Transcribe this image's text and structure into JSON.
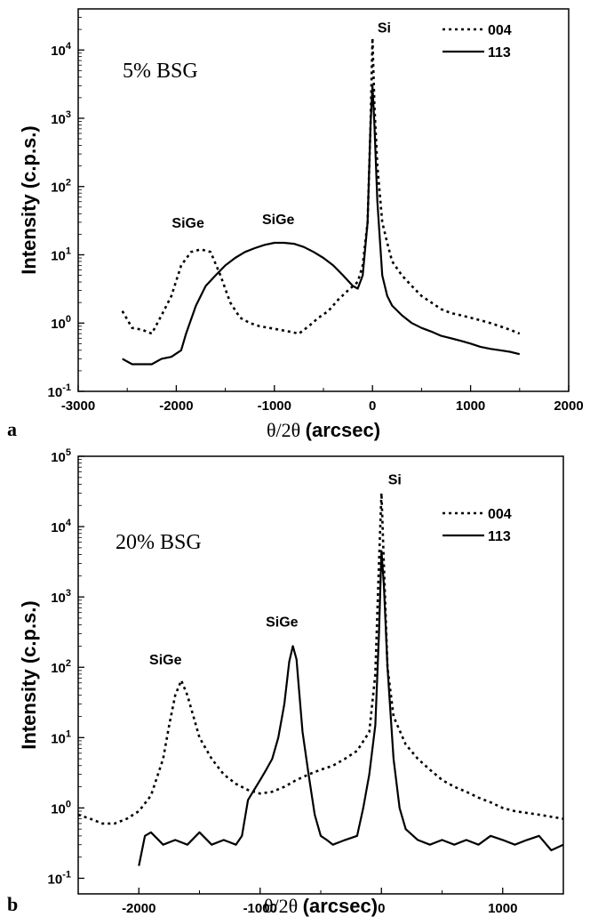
{
  "chart_data": [
    {
      "panel": "a",
      "type": "line",
      "sample_label": "5% BSG",
      "ylabel": "Intensity (c.p.s.)",
      "xlabel_symbol": "θ/2θ",
      "xlabel_unit": "(arcsec)",
      "yscale": "log",
      "xlim": [
        -3000,
        2000
      ],
      "ylim": [
        0.1,
        40000
      ],
      "x_ticks": [
        -3000,
        -2000,
        -1000,
        0,
        1000,
        2000
      ],
      "x_tick_labels": [
        "-3000",
        "-2000",
        "-1000",
        "0",
        "1000",
        "2000"
      ],
      "y_ticks": [
        0.1,
        1,
        10,
        100,
        1000,
        10000
      ],
      "y_tick_base": [
        "10",
        "10",
        "10",
        "10",
        "10",
        "10"
      ],
      "y_tick_exp": [
        "-1",
        "0",
        "1",
        "2",
        "3",
        "4"
      ],
      "legend_position": "top-right",
      "annotations": [
        {
          "text": "Si",
          "x": 120,
          "y": 18000
        },
        {
          "text": "SiGe",
          "x": -1880,
          "y": 25
        },
        {
          "text": "SiGe",
          "x": -960,
          "y": 28
        }
      ],
      "series": [
        {
          "name": "004",
          "style": "dotted",
          "x": [
            -2550,
            -2450,
            -2350,
            -2250,
            -2150,
            -2050,
            -1950,
            -1850,
            -1750,
            -1650,
            -1550,
            -1450,
            -1350,
            -1250,
            -1150,
            -1050,
            -950,
            -850,
            -750,
            -650,
            -550,
            -450,
            -350,
            -250,
            -150,
            -100,
            -50,
            -20,
            0,
            20,
            50,
            100,
            150,
            200,
            300,
            400,
            500,
            600,
            700,
            800,
            900,
            1000,
            1100,
            1200,
            1300,
            1400,
            1500
          ],
          "y": [
            1.5,
            0.85,
            0.8,
            0.7,
            1.3,
            2.5,
            7,
            11,
            12,
            11,
            5,
            2,
            1.2,
            1.0,
            0.9,
            0.85,
            0.8,
            0.75,
            0.7,
            0.9,
            1.2,
            1.5,
            2.2,
            3,
            4,
            7,
            30,
            800,
            15000,
            1500,
            200,
            30,
            15,
            8,
            5,
            3.5,
            2.5,
            2,
            1.6,
            1.4,
            1.3,
            1.2,
            1.1,
            1.0,
            0.9,
            0.8,
            0.7
          ]
        },
        {
          "name": "113",
          "style": "solid",
          "x": [
            -2550,
            -2450,
            -2350,
            -2250,
            -2150,
            -2050,
            -1950,
            -1900,
            -1800,
            -1700,
            -1600,
            -1500,
            -1400,
            -1300,
            -1200,
            -1100,
            -1000,
            -900,
            -800,
            -700,
            -600,
            -500,
            -400,
            -300,
            -200,
            -150,
            -100,
            -50,
            -20,
            0,
            20,
            50,
            100,
            150,
            200,
            300,
            400,
            500,
            600,
            700,
            800,
            900,
            1000,
            1100,
            1200,
            1300,
            1400,
            1500
          ],
          "y": [
            0.3,
            0.25,
            0.25,
            0.25,
            0.3,
            0.32,
            0.4,
            0.7,
            1.8,
            3.5,
            5,
            7,
            9,
            11,
            12.5,
            14,
            15,
            15,
            14.5,
            13,
            11,
            9,
            7,
            5,
            3.5,
            3.2,
            5,
            30,
            800,
            3000,
            800,
            60,
            5,
            2.5,
            1.8,
            1.3,
            1.0,
            0.85,
            0.75,
            0.65,
            0.6,
            0.55,
            0.5,
            0.45,
            0.42,
            0.4,
            0.38,
            0.35
          ]
        }
      ]
    },
    {
      "panel": "b",
      "type": "line",
      "sample_label": "20% BSG",
      "ylabel": "Intensity (c.p.s.)",
      "xlabel_symbol": "θ/2θ",
      "xlabel_unit": "(arcsec)",
      "yscale": "log",
      "xlim": [
        -2500,
        1500
      ],
      "ylim": [
        0.06,
        100000
      ],
      "x_ticks": [
        -2000,
        -1000,
        0,
        1000
      ],
      "x_tick_labels": [
        "-2000",
        "-1000",
        "0",
        "1000"
      ],
      "y_ticks": [
        0.1,
        1,
        10,
        100,
        1000,
        10000,
        100000
      ],
      "y_tick_base": [
        "10",
        "10",
        "10",
        "10",
        "10",
        "10",
        "10"
      ],
      "y_tick_exp": [
        "-1",
        "0",
        "1",
        "2",
        "3",
        "4",
        "5"
      ],
      "legend_position": "top-right",
      "annotations": [
        {
          "text": "Si",
          "x": 110,
          "y": 40000
        },
        {
          "text": "SiGe",
          "x": -1780,
          "y": 110
        },
        {
          "text": "SiGe",
          "x": -820,
          "y": 380
        }
      ],
      "series": [
        {
          "name": "004",
          "style": "dotted",
          "x": [
            -2500,
            -2400,
            -2300,
            -2200,
            -2100,
            -2000,
            -1900,
            -1800,
            -1750,
            -1700,
            -1650,
            -1600,
            -1550,
            -1500,
            -1400,
            -1300,
            -1200,
            -1100,
            -1000,
            -900,
            -800,
            -700,
            -600,
            -500,
            -400,
            -300,
            -200,
            -100,
            -50,
            -20,
            0,
            20,
            50,
            100,
            200,
            300,
            400,
            500,
            600,
            700,
            800,
            900,
            1000,
            1100,
            1200,
            1300,
            1400,
            1500
          ],
          "y": [
            0.8,
            0.7,
            0.6,
            0.6,
            0.7,
            0.9,
            1.5,
            5,
            15,
            40,
            65,
            40,
            20,
            10,
            5,
            3,
            2.2,
            1.8,
            1.6,
            1.7,
            2,
            2.5,
            3,
            3.5,
            4,
            5,
            6.5,
            12,
            80,
            3000,
            30000,
            3000,
            100,
            20,
            8,
            5,
            3.5,
            2.5,
            2,
            1.7,
            1.4,
            1.2,
            1.0,
            0.9,
            0.85,
            0.8,
            0.75,
            0.7
          ]
        },
        {
          "name": "113",
          "style": "solid",
          "x": [
            -2000,
            -1950,
            -1900,
            -1800,
            -1700,
            -1600,
            -1500,
            -1400,
            -1300,
            -1200,
            -1150,
            -1100,
            -1000,
            -950,
            -900,
            -850,
            -800,
            -760,
            -730,
            -700,
            -680,
            -650,
            -600,
            -550,
            -500,
            -450,
            -400,
            -300,
            -200,
            -150,
            -100,
            -50,
            -20,
            0,
            20,
            50,
            100,
            150,
            200,
            300,
            400,
            500,
            600,
            700,
            800,
            900,
            1000,
            1100,
            1200,
            1300,
            1400,
            1500
          ],
          "y": [
            0.15,
            0.4,
            0.45,
            0.3,
            0.35,
            0.3,
            0.45,
            0.3,
            0.35,
            0.3,
            0.4,
            1.3,
            2.5,
            3.5,
            5,
            10,
            30,
            120,
            200,
            130,
            50,
            12,
            3,
            0.8,
            0.4,
            0.35,
            0.3,
            0.35,
            0.4,
            1.0,
            3,
            15,
            300,
            4500,
            1500,
            100,
            5,
            1,
            0.5,
            0.35,
            0.3,
            0.35,
            0.3,
            0.35,
            0.3,
            0.4,
            0.35,
            0.3,
            0.35,
            0.4,
            0.25,
            0.3
          ]
        }
      ]
    }
  ]
}
